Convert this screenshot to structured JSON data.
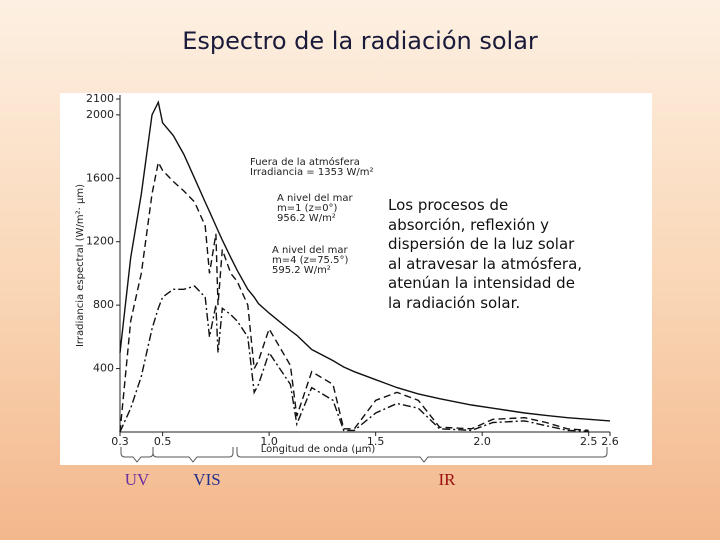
{
  "slide": {
    "title": "Espectro de la radiación solar",
    "note": "Los procesos de absorción, reflexión y dispersión de la luz solar al atravesar la atmósfera, atenúan la intensidad de la radiación solar.",
    "bands": [
      "UV",
      "VIS",
      "IR"
    ]
  },
  "chart_data": {
    "type": "line",
    "xlabel": "Longitud de onda (µm)",
    "ylabel": "Irradiancia espectral (W/m²· µm)",
    "x": [
      0.3,
      0.35,
      0.4,
      0.45,
      0.48,
      0.5,
      0.55,
      0.6,
      0.65,
      0.7,
      0.72,
      0.75,
      0.76,
      0.78,
      0.82,
      0.85,
      0.9,
      0.93,
      0.95,
      1.0,
      1.1,
      1.13,
      1.2,
      1.3,
      1.35,
      1.4,
      1.5,
      1.6,
      1.7,
      1.8,
      1.95,
      2.05,
      2.2,
      2.3,
      2.4,
      2.5,
      2.6
    ],
    "xlim": [
      0.3,
      2.6
    ],
    "xticks": [
      0.3,
      0.5,
      {
        "value": 1,
        "label": "1.0"
      },
      1.5,
      {
        "value": 2,
        "label": "2.0"
      },
      2.5,
      2.6
    ],
    "ylim": [
      0,
      2100
    ],
    "yticks": [
      400,
      800,
      1200,
      1600,
      2000,
      2100
    ],
    "series": [
      {
        "name": "Fuera de la atmósfera",
        "detail": [
          "Irradiancia = 1353 W/m²"
        ],
        "color": "#111111",
        "dash": "solid",
        "values": [
          500,
          1100,
          1500,
          2000,
          2080,
          1950,
          1870,
          1750,
          1600,
          1450,
          1390,
          1300,
          1270,
          1210,
          1100,
          1020,
          900,
          850,
          810,
          750,
          640,
          610,
          520,
          450,
          410,
          380,
          330,
          280,
          240,
          210,
          170,
          150,
          120,
          105,
          90,
          80,
          70
        ]
      },
      {
        "name": "A nivel del mar",
        "detail": [
          "m=1 (z=0°)",
          "956.2 W/m²"
        ],
        "color": "#111111",
        "dash": "dashed",
        "values": [
          0,
          700,
          1000,
          1500,
          1700,
          1650,
          1580,
          1520,
          1450,
          1300,
          1000,
          1250,
          800,
          1150,
          1000,
          950,
          800,
          400,
          450,
          650,
          420,
          100,
          380,
          300,
          20,
          20,
          200,
          250,
          200,
          30,
          20,
          80,
          90,
          60,
          20,
          10,
          null
        ]
      },
      {
        "name": "A nivel del mar",
        "detail": [
          "m=4 (z=75.5°)",
          "595.2 W/m²"
        ],
        "color": "#111111",
        "dash": "dashdot",
        "values": [
          0,
          150,
          350,
          650,
          780,
          850,
          900,
          900,
          920,
          850,
          600,
          800,
          500,
          780,
          740,
          700,
          600,
          250,
          300,
          500,
          300,
          50,
          280,
          200,
          10,
          10,
          120,
          180,
          150,
          20,
          10,
          60,
          70,
          40,
          10,
          5,
          null
        ]
      }
    ]
  }
}
